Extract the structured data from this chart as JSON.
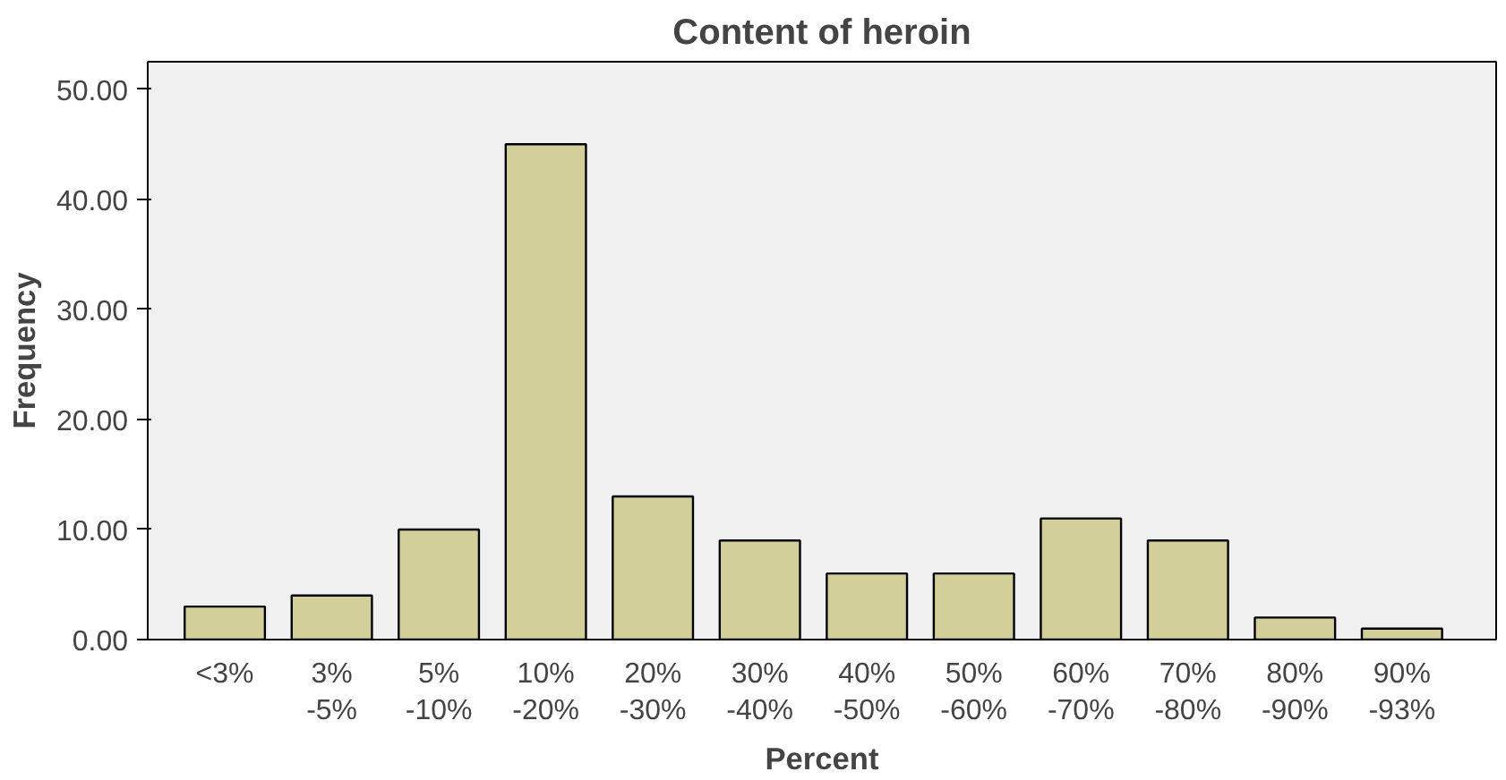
{
  "chart_data": {
    "type": "bar",
    "title": "Content of heroin",
    "xlabel": "Percent",
    "ylabel": "Frequency",
    "categories": [
      "<3%",
      "3%\n-5%",
      "5%\n-10%",
      "10%\n-20%",
      "20%\n-30%",
      "30%\n-40%",
      "40%\n-50%",
      "50%\n-60%",
      "60%\n-70%",
      "70%\n-80%",
      "80%\n-90%",
      "90%\n-93%"
    ],
    "values": [
      3,
      4,
      10,
      45,
      13,
      9,
      6,
      6,
      11,
      9,
      2,
      1
    ],
    "color": "#d3cf9b",
    "ylim": [
      0,
      52.5
    ],
    "yticks": [
      {
        "value": 0,
        "label": "0.00"
      },
      {
        "value": 10,
        "label": "10.00"
      },
      {
        "value": 20,
        "label": "20.00"
      },
      {
        "value": 30,
        "label": "30.00"
      },
      {
        "value": 40,
        "label": "40.00"
      },
      {
        "value": 50,
        "label": "50.00"
      }
    ],
    "grid": false
  }
}
